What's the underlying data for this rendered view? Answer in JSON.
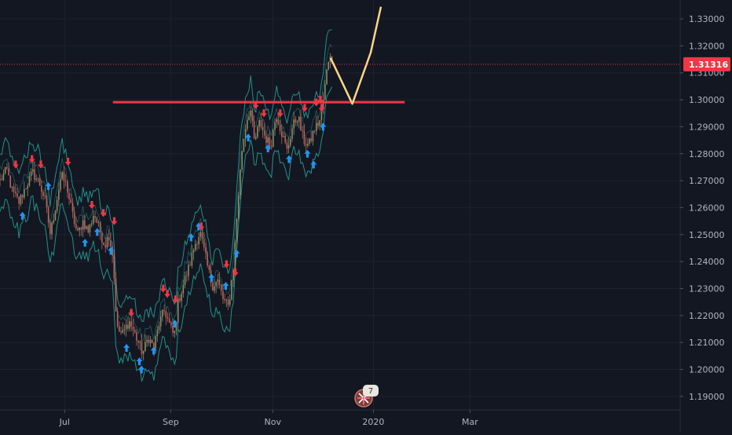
{
  "colors": {
    "background": "#131722",
    "grid": "#1e222d",
    "axis_text": "#b2b5be",
    "candle_up": "#8a8f6a",
    "candle_down": "#b5655a",
    "bands": "#26a69a",
    "buy_arrow": "#2196f3",
    "sell_arrow": "#f23645",
    "resistance": "#f23645",
    "projection": "#ffd68a",
    "last_price": "#f23645"
  },
  "chart_data": {
    "type": "candlestick",
    "title": "",
    "ylim": [
      1.185,
      1.337
    ],
    "y_ticks": [
      "1.19000",
      "1.20000",
      "1.21000",
      "1.22000",
      "1.23000",
      "1.24000",
      "1.25000",
      "1.26000",
      "1.27000",
      "1.28000",
      "1.29000",
      "1.30000",
      "1.31000",
      "1.32000",
      "1.33000"
    ],
    "x_ticks": [
      {
        "label": "Jul",
        "t": 0.095
      },
      {
        "label": "Sep",
        "t": 0.251
      },
      {
        "label": "Nov",
        "t": 0.401
      },
      {
        "label": "2020",
        "t": 0.549
      },
      {
        "label": "Mar",
        "t": 0.691
      }
    ],
    "last_price": "1.31316",
    "last_price_value": 1.31316,
    "path": [
      [
        0.0,
        1.27
      ],
      [
        0.01,
        1.274
      ],
      [
        0.018,
        1.266
      ],
      [
        0.028,
        1.262
      ],
      [
        0.038,
        1.268
      ],
      [
        0.048,
        1.273
      ],
      [
        0.058,
        1.269
      ],
      [
        0.066,
        1.263
      ],
      [
        0.074,
        1.25
      ],
      [
        0.082,
        1.261
      ],
      [
        0.09,
        1.272
      ],
      [
        0.098,
        1.268
      ],
      [
        0.106,
        1.258
      ],
      [
        0.114,
        1.25
      ],
      [
        0.122,
        1.255
      ],
      [
        0.13,
        1.251
      ],
      [
        0.138,
        1.258
      ],
      [
        0.146,
        1.252
      ],
      [
        0.154,
        1.246
      ],
      [
        0.16,
        1.25
      ],
      [
        0.166,
        1.242
      ],
      [
        0.172,
        1.215
      ],
      [
        0.18,
        1.213
      ],
      [
        0.19,
        1.218
      ],
      [
        0.2,
        1.212
      ],
      [
        0.21,
        1.206
      ],
      [
        0.218,
        1.212
      ],
      [
        0.226,
        1.208
      ],
      [
        0.234,
        1.217
      ],
      [
        0.242,
        1.222
      ],
      [
        0.25,
        1.216
      ],
      [
        0.256,
        1.212
      ],
      [
        0.262,
        1.225
      ],
      [
        0.27,
        1.232
      ],
      [
        0.278,
        1.238
      ],
      [
        0.286,
        1.246
      ],
      [
        0.294,
        1.251
      ],
      [
        0.3,
        1.244
      ],
      [
        0.306,
        1.237
      ],
      [
        0.312,
        1.231
      ],
      [
        0.32,
        1.233
      ],
      [
        0.328,
        1.226
      ],
      [
        0.336,
        1.223
      ],
      [
        0.344,
        1.24
      ],
      [
        0.35,
        1.263
      ],
      [
        0.356,
        1.282
      ],
      [
        0.362,
        1.292
      ],
      [
        0.368,
        1.297
      ],
      [
        0.374,
        1.284
      ],
      [
        0.382,
        1.292
      ],
      [
        0.39,
        1.286
      ],
      [
        0.398,
        1.283
      ],
      [
        0.406,
        1.295
      ],
      [
        0.414,
        1.288
      ],
      [
        0.422,
        1.281
      ],
      [
        0.43,
        1.29
      ],
      [
        0.438,
        1.294
      ],
      [
        0.446,
        1.285
      ],
      [
        0.454,
        1.283
      ],
      [
        0.462,
        1.289
      ],
      [
        0.47,
        1.292
      ],
      [
        0.476,
        1.301
      ],
      [
        0.482,
        1.314
      ],
      [
        0.486,
        1.318
      ],
      [
        0.488,
        1.314
      ]
    ],
    "buy_signals": [
      {
        "t": 0.033,
        "v": 1.257
      },
      {
        "t": 0.071,
        "v": 1.268
      },
      {
        "t": 0.125,
        "v": 1.247
      },
      {
        "t": 0.143,
        "v": 1.251
      },
      {
        "t": 0.163,
        "v": 1.244
      },
      {
        "t": 0.186,
        "v": 1.208
      },
      {
        "t": 0.205,
        "v": 1.203
      },
      {
        "t": 0.208,
        "v": 1.2
      },
      {
        "t": 0.226,
        "v": 1.207
      },
      {
        "t": 0.257,
        "v": 1.217
      },
      {
        "t": 0.281,
        "v": 1.249
      },
      {
        "t": 0.292,
        "v": 1.253
      },
      {
        "t": 0.311,
        "v": 1.234
      },
      {
        "t": 0.332,
        "v": 1.231
      },
      {
        "t": 0.348,
        "v": 1.243
      },
      {
        "t": 0.365,
        "v": 1.286
      },
      {
        "t": 0.394,
        "v": 1.282
      },
      {
        "t": 0.425,
        "v": 1.278
      },
      {
        "t": 0.452,
        "v": 1.28
      },
      {
        "t": 0.461,
        "v": 1.276
      },
      {
        "t": 0.475,
        "v": 1.29
      }
    ],
    "sell_signals": [
      {
        "t": 0.023,
        "v": 1.276
      },
      {
        "t": 0.047,
        "v": 1.278
      },
      {
        "t": 0.06,
        "v": 1.276
      },
      {
        "t": 0.1,
        "v": 1.277
      },
      {
        "t": 0.135,
        "v": 1.261
      },
      {
        "t": 0.152,
        "v": 1.258
      },
      {
        "t": 0.168,
        "v": 1.255
      },
      {
        "t": 0.193,
        "v": 1.221
      },
      {
        "t": 0.24,
        "v": 1.23
      },
      {
        "t": 0.246,
        "v": 1.228
      },
      {
        "t": 0.258,
        "v": 1.226
      },
      {
        "t": 0.296,
        "v": 1.253
      },
      {
        "t": 0.333,
        "v": 1.239
      },
      {
        "t": 0.346,
        "v": 1.236
      },
      {
        "t": 0.376,
        "v": 1.298
      },
      {
        "t": 0.388,
        "v": 1.295
      },
      {
        "t": 0.412,
        "v": 1.295
      },
      {
        "t": 0.448,
        "v": 1.297
      },
      {
        "t": 0.465,
        "v": 1.299
      },
      {
        "t": 0.471,
        "v": 1.3
      },
      {
        "t": 0.473,
        "v": 1.297
      }
    ],
    "resistance_line": {
      "value": 1.2991,
      "t_start": 0.166,
      "t_end": 0.595
    },
    "projection": [
      [
        0.486,
        1.3155
      ],
      [
        0.518,
        1.2985
      ],
      [
        0.545,
        1.3175
      ],
      [
        0.56,
        1.3345
      ]
    ],
    "band_width": 0.011
  }
}
